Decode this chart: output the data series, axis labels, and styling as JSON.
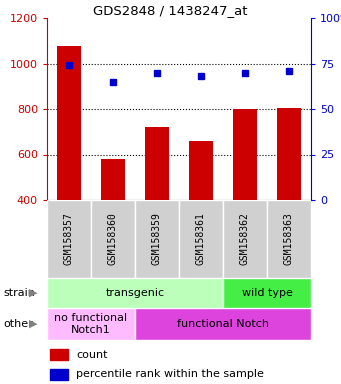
{
  "title": "GDS2848 / 1438247_at",
  "categories": [
    "GSM158357",
    "GSM158360",
    "GSM158359",
    "GSM158361",
    "GSM158362",
    "GSM158363"
  ],
  "bar_values": [
    1075,
    580,
    720,
    660,
    800,
    805
  ],
  "dot_values": [
    74,
    65,
    70,
    68,
    70,
    71
  ],
  "bar_color": "#cc0000",
  "dot_color": "#0000cc",
  "ylim_left": [
    400,
    1200
  ],
  "ylim_right": [
    0,
    100
  ],
  "yticks_left": [
    400,
    600,
    800,
    1000,
    1200
  ],
  "yticks_right": [
    0,
    25,
    50,
    75,
    100
  ],
  "ytick_labels_right": [
    "0",
    "25",
    "50",
    "75",
    "100%"
  ],
  "grid_values": [
    600,
    800,
    1000
  ],
  "strain_row": [
    {
      "label": "transgenic",
      "span": [
        0,
        4
      ],
      "color": "#bbffbb"
    },
    {
      "label": "wild type",
      "span": [
        4,
        6
      ],
      "color": "#44ee44"
    }
  ],
  "other_row": [
    {
      "label": "no functional\nNotch1",
      "span": [
        0,
        2
      ],
      "color": "#ffbbff"
    },
    {
      "label": "functional Notch",
      "span": [
        2,
        6
      ],
      "color": "#dd44dd"
    }
  ],
  "strain_label": "strain",
  "other_label": "other",
  "legend_count_label": "count",
  "legend_pct_label": "percentile rank within the sample",
  "tick_label_color_left": "#cc0000",
  "tick_label_color_right": "#0000cc",
  "gray_bg": "#d0d0d0",
  "fig_w": 3.41,
  "fig_h": 3.84,
  "dpi": 100
}
